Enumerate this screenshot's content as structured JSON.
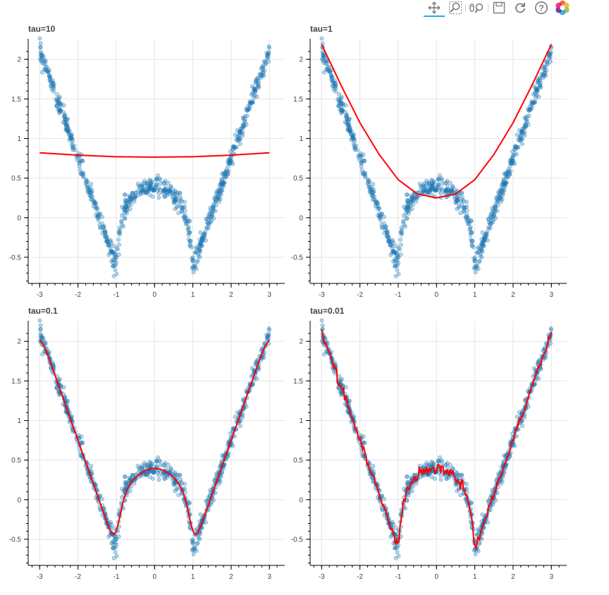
{
  "toolbar": {
    "tools": [
      {
        "id": "pan",
        "icon": "pan-icon",
        "active": true
      },
      {
        "id": "box-zoom",
        "icon": "box-zoom-icon",
        "active": false
      },
      {
        "id": "wheel-zoom",
        "icon": "wheel-zoom-icon",
        "active": false
      },
      {
        "id": "save",
        "icon": "save-icon",
        "active": false
      },
      {
        "id": "reset",
        "icon": "reset-icon",
        "active": false
      },
      {
        "id": "help",
        "icon": "help-icon",
        "active": false
      },
      {
        "id": "bokeh-logo",
        "icon": "bokeh-logo-icon",
        "active": false
      }
    ],
    "accent_color": "#26aae1"
  },
  "chart_data": [
    {
      "type": "scatter+line",
      "title": "tau=10",
      "tau": 10,
      "xlim": [
        -3.3,
        3.4
      ],
      "ylim": [
        -0.83,
        2.26
      ],
      "xticks": [
        -3,
        -2,
        -1,
        0,
        1,
        2,
        3
      ],
      "xtick_labels": [
        "-3",
        "-2",
        "-1",
        "0",
        "1",
        "2",
        "3"
      ],
      "yticks": [
        -0.5,
        0,
        0.5,
        1,
        1.5,
        2
      ],
      "ytick_labels": [
        "-0.5",
        "0",
        "0.5",
        "1",
        "1.5",
        "2"
      ],
      "grid": true,
      "scatter": {
        "name": "data",
        "color": "#1f77b4",
        "description": "noisy samples of |x| style W-shaped curve, approximately 800 points over x in [-3,3]"
      },
      "fit": {
        "name": "local regression fit",
        "color": "#ff0000",
        "x": [
          -3,
          -2,
          -1,
          0,
          1,
          2,
          3
        ],
        "y": [
          0.82,
          0.79,
          0.77,
          0.765,
          0.77,
          0.79,
          0.82
        ]
      }
    },
    {
      "type": "scatter+line",
      "title": "tau=1",
      "tau": 1,
      "xlim": [
        -3.3,
        3.4
      ],
      "ylim": [
        -0.83,
        2.26
      ],
      "xticks": [
        -3,
        -2,
        -1,
        0,
        1,
        2,
        3
      ],
      "xtick_labels": [
        "-3",
        "-2",
        "-1",
        "0",
        "1",
        "2",
        "3"
      ],
      "yticks": [
        -0.5,
        0,
        0.5,
        1,
        1.5,
        2
      ],
      "ytick_labels": [
        "-0.5",
        "0",
        "0.5",
        "1",
        "1.5",
        "2"
      ],
      "grid": true,
      "scatter": {
        "name": "data",
        "color": "#1f77b4",
        "description": "noisy samples of |x| style W-shaped curve, approximately 800 points over x in [-3,3]"
      },
      "fit": {
        "name": "local regression fit",
        "color": "#ff0000",
        "x": [
          -3,
          -2.5,
          -2,
          -1.5,
          -1,
          -0.5,
          0,
          0.5,
          1,
          1.5,
          2,
          2.5,
          3
        ],
        "y": [
          2.19,
          1.68,
          1.2,
          0.8,
          0.48,
          0.3,
          0.25,
          0.3,
          0.48,
          0.8,
          1.2,
          1.68,
          2.19
        ]
      }
    },
    {
      "type": "scatter+line",
      "title": "tau=0.1",
      "tau": 0.1,
      "xlim": [
        -3.3,
        3.4
      ],
      "ylim": [
        -0.83,
        2.26
      ],
      "xticks": [
        -3,
        -2,
        -1,
        0,
        1,
        2,
        3
      ],
      "xtick_labels": [
        "-3",
        "-2",
        "-1",
        "0",
        "1",
        "2",
        "3"
      ],
      "yticks": [
        -0.5,
        0,
        0.5,
        1,
        1.5,
        2
      ],
      "ytick_labels": [
        "-0.5",
        "0",
        "0.5",
        "1",
        "1.5",
        "2"
      ],
      "grid": true,
      "scatter": {
        "name": "data",
        "color": "#1f77b4",
        "description": "noisy samples of |x| style W-shaped curve, approximately 800 points over x in [-3,3]"
      },
      "fit": {
        "name": "local regression fit",
        "color": "#ff0000",
        "x": [
          -3,
          -2.5,
          -2,
          -1.5,
          -1.2,
          -1,
          -0.8,
          -0.5,
          -0.25,
          0,
          0.25,
          0.5,
          0.8,
          1,
          1.2,
          1.5,
          2,
          2.5,
          3
        ],
        "y": [
          2.06,
          1.56,
          1.06,
          0.45,
          0.02,
          -0.34,
          0.08,
          0.3,
          0.37,
          0.39,
          0.37,
          0.3,
          0.08,
          -0.37,
          0.02,
          0.45,
          1.06,
          1.56,
          2.06
        ]
      }
    },
    {
      "type": "scatter+line",
      "title": "tau=0.01",
      "tau": 0.01,
      "xlim": [
        -3.3,
        3.4
      ],
      "ylim": [
        -0.83,
        2.26
      ],
      "xticks": [
        -3,
        -2,
        -1,
        0,
        1,
        2,
        3
      ],
      "xtick_labels": [
        "-3",
        "-2",
        "-1",
        "0",
        "1",
        "2",
        "3"
      ],
      "yticks": [
        -0.5,
        0,
        0.5,
        1,
        1.5,
        2
      ],
      "ytick_labels": [
        "-0.5",
        "0",
        "0.5",
        "1",
        "1.5",
        "2"
      ],
      "grid": true,
      "scatter": {
        "name": "data",
        "color": "#1f77b4",
        "description": "noisy samples of |x| style W-shaped curve, approximately 800 points over x in [-3,3]"
      },
      "fit": {
        "name": "local regression fit (noisy, follows individual samples)",
        "color": "#ff0000",
        "x": [
          -3,
          -2.5,
          -2,
          -1.5,
          -1.2,
          -1,
          -0.8,
          -0.5,
          -0.25,
          0,
          0.25,
          0.5,
          0.8,
          1,
          1.2,
          1.5,
          2,
          2.5,
          3
        ],
        "y": [
          2.06,
          1.56,
          1.06,
          0.45,
          0.02,
          -0.42,
          0.08,
          0.3,
          0.37,
          0.39,
          0.37,
          0.3,
          0.08,
          -0.45,
          0.02,
          0.45,
          1.06,
          1.56,
          2.06
        ],
        "noise": 0.05
      }
    }
  ]
}
